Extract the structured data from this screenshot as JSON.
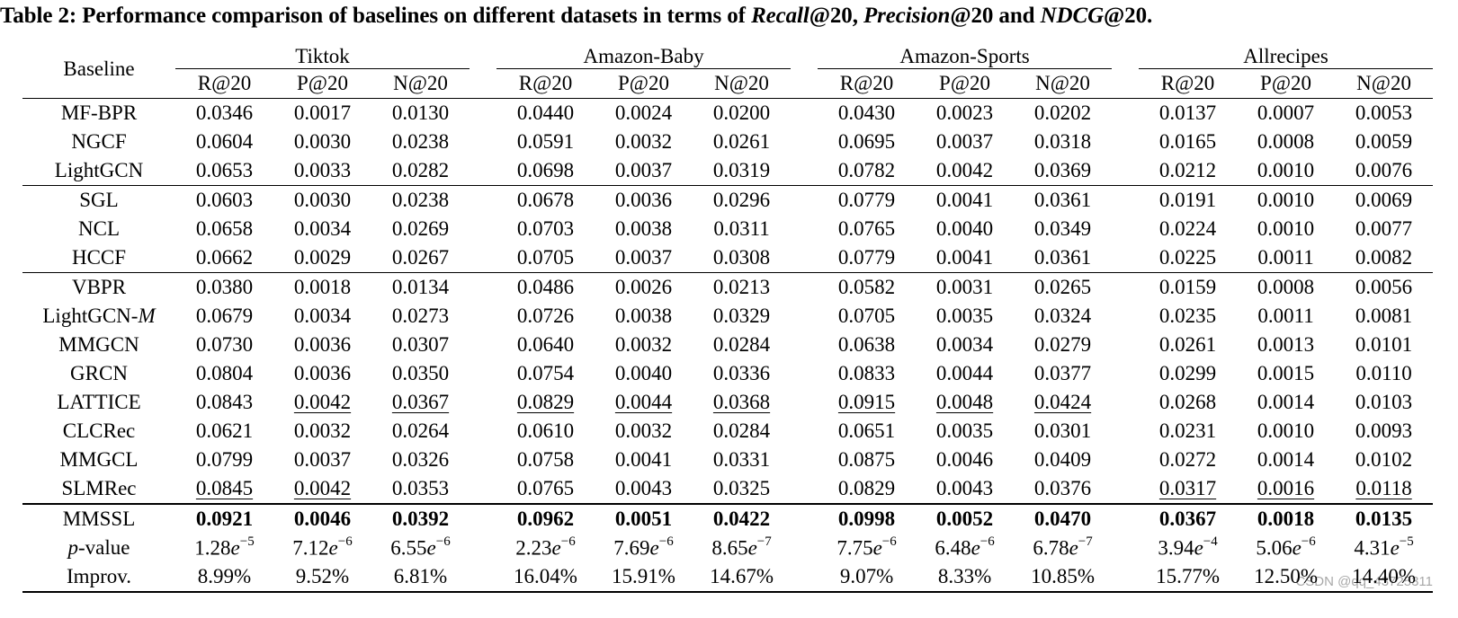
{
  "caption": {
    "prefix": "Table 2: Performance comparison of baselines on different datasets in terms of ",
    "m1": "Recall",
    "m1_suffix": "@20, ",
    "m2": "Precision",
    "m2_suffix": "@20 and ",
    "m3": "NDCG",
    "m3_suffix": "@20."
  },
  "header": {
    "baseline": "Baseline",
    "datasets": [
      "Tiktok",
      "Amazon-Baby",
      "Amazon-Sports",
      "Allrecipes"
    ],
    "metrics": [
      "R@20",
      "P@20",
      "N@20"
    ]
  },
  "rows": [
    {
      "name": "MF-BPR",
      "values": [
        "0.0346",
        "0.0017",
        "0.0130",
        "0.0440",
        "0.0024",
        "0.0200",
        "0.0430",
        "0.0023",
        "0.0202",
        "0.0137",
        "0.0007",
        "0.0053"
      ]
    },
    {
      "name": "NGCF",
      "values": [
        "0.0604",
        "0.0030",
        "0.0238",
        "0.0591",
        "0.0032",
        "0.0261",
        "0.0695",
        "0.0037",
        "0.0318",
        "0.0165",
        "0.0008",
        "0.0059"
      ]
    },
    {
      "name": "LightGCN",
      "values": [
        "0.0653",
        "0.0033",
        "0.0282",
        "0.0698",
        "0.0037",
        "0.0319",
        "0.0782",
        "0.0042",
        "0.0369",
        "0.0212",
        "0.0010",
        "0.0076"
      ]
    },
    {
      "name": "SGL",
      "values": [
        "0.0603",
        "0.0030",
        "0.0238",
        "0.0678",
        "0.0036",
        "0.0296",
        "0.0779",
        "0.0041",
        "0.0361",
        "0.0191",
        "0.0010",
        "0.0069"
      ]
    },
    {
      "name": "NCL",
      "values": [
        "0.0658",
        "0.0034",
        "0.0269",
        "0.0703",
        "0.0038",
        "0.0311",
        "0.0765",
        "0.0040",
        "0.0349",
        "0.0224",
        "0.0010",
        "0.0077"
      ]
    },
    {
      "name": "HCCF",
      "values": [
        "0.0662",
        "0.0029",
        "0.0267",
        "0.0705",
        "0.0037",
        "0.0308",
        "0.0779",
        "0.0041",
        "0.0361",
        "0.0225",
        "0.0011",
        "0.0082"
      ]
    },
    {
      "name": "VBPR",
      "values": [
        "0.0380",
        "0.0018",
        "0.0134",
        "0.0486",
        "0.0026",
        "0.0213",
        "0.0582",
        "0.0031",
        "0.0265",
        "0.0159",
        "0.0008",
        "0.0056"
      ]
    },
    {
      "name_prefix": "LightGCN-",
      "name_italic": "M",
      "values": [
        "0.0679",
        "0.0034",
        "0.0273",
        "0.0726",
        "0.0038",
        "0.0329",
        "0.0705",
        "0.0035",
        "0.0324",
        "0.0235",
        "0.0011",
        "0.0081"
      ]
    },
    {
      "name": "MMGCN",
      "values": [
        "0.0730",
        "0.0036",
        "0.0307",
        "0.0640",
        "0.0032",
        "0.0284",
        "0.0638",
        "0.0034",
        "0.0279",
        "0.0261",
        "0.0013",
        "0.0101"
      ]
    },
    {
      "name": "GRCN",
      "values": [
        "0.0804",
        "0.0036",
        "0.0350",
        "0.0754",
        "0.0040",
        "0.0336",
        "0.0833",
        "0.0044",
        "0.0377",
        "0.0299",
        "0.0015",
        "0.0110"
      ]
    },
    {
      "name": "LATTICE",
      "values": [
        "0.0843",
        "0.0042",
        "0.0367",
        "0.0829",
        "0.0044",
        "0.0368",
        "0.0915",
        "0.0048",
        "0.0424",
        "0.0268",
        "0.0014",
        "0.0103"
      ]
    },
    {
      "name": "CLCRec",
      "values": [
        "0.0621",
        "0.0032",
        "0.0264",
        "0.0610",
        "0.0032",
        "0.0284",
        "0.0651",
        "0.0035",
        "0.0301",
        "0.0231",
        "0.0010",
        "0.0093"
      ]
    },
    {
      "name": "MMGCL",
      "values": [
        "0.0799",
        "0.0037",
        "0.0326",
        "0.0758",
        "0.0041",
        "0.0331",
        "0.0875",
        "0.0046",
        "0.0409",
        "0.0272",
        "0.0014",
        "0.0102"
      ]
    },
    {
      "name": "SLMRec",
      "values": [
        "0.0845",
        "0.0042",
        "0.0353",
        "0.0765",
        "0.0043",
        "0.0325",
        "0.0829",
        "0.0043",
        "0.0376",
        "0.0317",
        "0.0016",
        "0.0118"
      ]
    },
    {
      "name": "MMSSL",
      "values": [
        "0.0921",
        "0.0046",
        "0.0392",
        "0.0962",
        "0.0051",
        "0.0422",
        "0.0998",
        "0.0052",
        "0.0470",
        "0.0367",
        "0.0018",
        "0.0135"
      ]
    }
  ],
  "pvalue": {
    "label_italic": "p",
    "label_suffix": "-value",
    "values": [
      {
        "m": "1.28",
        "e": "−5"
      },
      {
        "m": "7.12",
        "e": "−6"
      },
      {
        "m": "6.55",
        "e": "−6"
      },
      {
        "m": "2.23",
        "e": "−6"
      },
      {
        "m": "7.69",
        "e": "−6"
      },
      {
        "m": "8.65",
        "e": "−7"
      },
      {
        "m": "7.75",
        "e": "−6"
      },
      {
        "m": "6.48",
        "e": "−6"
      },
      {
        "m": "6.78",
        "e": "−7"
      },
      {
        "m": "3.94",
        "e": "−4"
      },
      {
        "m": "5.06",
        "e": "−6"
      },
      {
        "m": "4.31",
        "e": "−5"
      }
    ]
  },
  "improv": {
    "label": "Improv.",
    "values": [
      "8.99%",
      "9.52%",
      "6.81%",
      "16.04%",
      "15.91%",
      "14.67%",
      "9.07%",
      "8.33%",
      "10.85%",
      "15.77%",
      "12.50%",
      "14.40%"
    ]
  },
  "watermark": "CSDN @qq_43725311"
}
